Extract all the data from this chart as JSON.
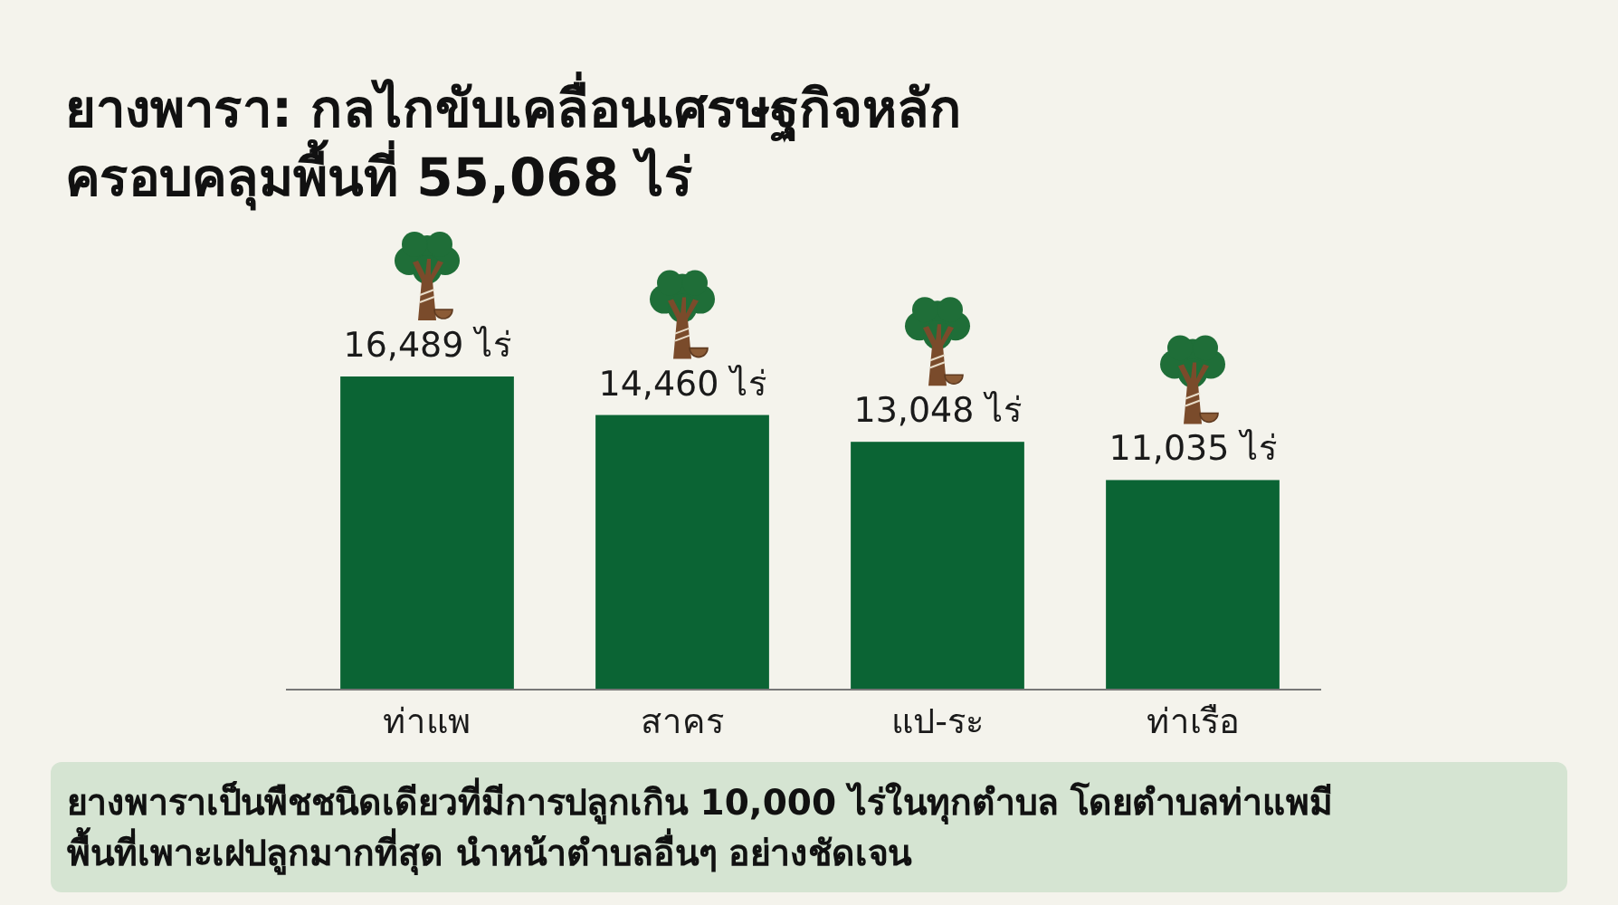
{
  "chart_data": {
    "type": "bar",
    "title": "ยางพารา: กลไกขับเคลื่อนเศรษฐกิจหลัก\nครอบคลุมพื้นที่ 55,068 ไร่",
    "categories": [
      "ท่าแพ",
      "สาคร",
      "แป-ระ",
      "ท่าเรือ"
    ],
    "values": [
      16489,
      14460,
      13048,
      11035
    ],
    "value_labels": [
      "16,489 ไร่",
      "14,460 ไร่",
      "13,048 ไร่",
      "11,035 ไร่"
    ],
    "color": "#0b6434",
    "tick_labels": "x",
    "annotations": [
      "ยางพาราเป็นพืชชนิดเดียวที่มีการปลูกเกิน 10,000 ไร่ในทุกตำบล โดยตำบลท่าแพมี\nพื้นที่เพาะเฝปลูกมากที่สุด นำหน้าตำบลอื่นๆ อย่างชัดเจน"
    ]
  }
}
